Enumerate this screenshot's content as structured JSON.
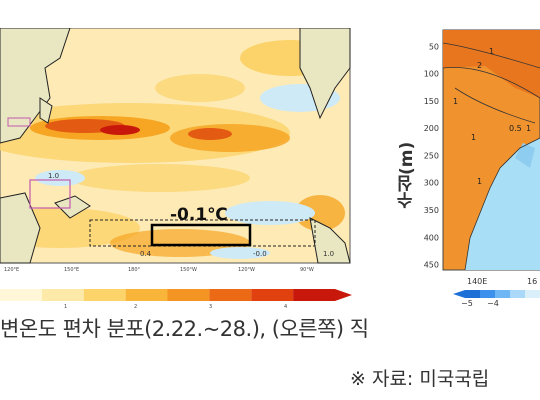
{
  "colors": {
    "ocean_base": "#fdeab5",
    "warm_light": "#fbd36a",
    "warm_mid": "#f6a623",
    "warm_strong": "#e35a12",
    "warm_max": "#c8180c",
    "cool_light": "#cfeaf7",
    "cool_mid": "#8fcdf0",
    "land": "#e9e6c2",
    "section_warm": "#f0932f",
    "section_cool": "#a8def6"
  },
  "chart_data": [
    {
      "type": "heatmap",
      "title": "",
      "x_tick_labels": [
        "120°E",
        "150°E",
        "180°",
        "150°W",
        "120°W",
        "90°W"
      ],
      "colorbar": {
        "ticks": [
          "1",
          "2",
          "3",
          "4"
        ],
        "colors": [
          "#fff7d8",
          "#fde9a8",
          "#fcd46a",
          "#f9b43a",
          "#f49423",
          "#ec6a16",
          "#e0410f",
          "#c8180c"
        ]
      },
      "annotations": [
        {
          "label": "-0.1℃",
          "region": "Niño3.4 box"
        },
        {
          "label": "1.0",
          "region": "western Pacific box"
        },
        {
          "label": "0.4",
          "region": "central Pacific"
        },
        {
          "label": "-0.0",
          "region": "eastern Pacific"
        },
        {
          "label": "1.0",
          "region": "far eastern Pacific"
        }
      ]
    },
    {
      "type": "heatmap",
      "ylabel": "수심(m)",
      "y_tick_labels": [
        "50",
        "100",
        "150",
        "200",
        "250",
        "300",
        "350",
        "400",
        "450"
      ],
      "ylim": [
        460,
        20
      ],
      "x_tick_labels": [
        "140E",
        "16"
      ],
      "contour_labels": [
        "1",
        "2",
        "1",
        "1",
        "1",
        "0.5",
        "1"
      ],
      "colorbar": {
        "ticks": [
          "−5",
          "−4"
        ],
        "colors": [
          "#1e6fd6",
          "#3d90ec",
          "#6fb6f4",
          "#a9d8f8",
          "#d9f0fb"
        ]
      }
    }
  ],
  "caption": "변온도  편차  분포(2.22.~28.),  (오른쪽)  직",
  "source": "※ 자료:  미국국립"
}
